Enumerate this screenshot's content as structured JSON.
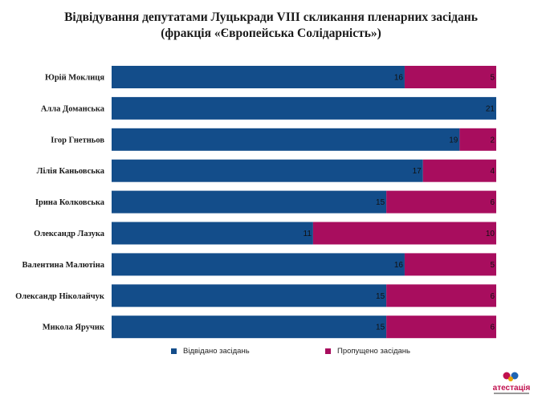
{
  "title_line1": "Відвідування депутатами Луцькради VIII скликання пленарних засідань",
  "title_line2": "(фракція «Європейська Солідарність»)",
  "logo_text": "атестація",
  "colors": {
    "attended": "#134d8a",
    "missed": "#a80d5e"
  },
  "chart_data": {
    "type": "bar",
    "orientation": "horizontal",
    "stacked": true,
    "categories": [
      "Юрій Моклиця",
      "Алла Доманська",
      "Ігор Гнетньов",
      "Лілія Каньовська",
      "Ірина Колковська",
      "Олександр Лазука",
      "Валентина Малютіна",
      "Олександр Ніколайчук",
      "Микола Яручик"
    ],
    "series": [
      {
        "name": "Відвідано засідань",
        "values": [
          16,
          21,
          19,
          17,
          15,
          11,
          16,
          15,
          15
        ]
      },
      {
        "name": "Пропущено засідань",
        "values": [
          5,
          0,
          2,
          4,
          6,
          10,
          5,
          6,
          6
        ]
      }
    ],
    "xlim": [
      0,
      21
    ],
    "grid": false,
    "legend_position": "bottom"
  }
}
